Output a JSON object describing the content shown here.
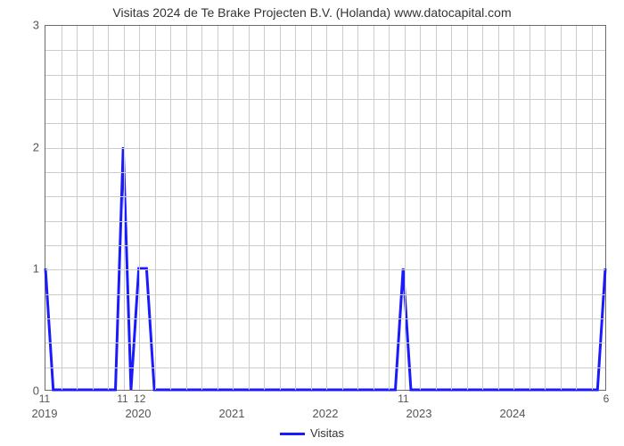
{
  "chart": {
    "type": "line",
    "title": "Visitas 2024 de Te Brake Projecten B.V. (Holanda) www.datocapital.com",
    "title_fontsize": 14,
    "background_color": "#ffffff",
    "grid_color": "#cccccc",
    "axis_color": "#6b6b6b",
    "series_color": "#1a1aff",
    "line_width": 3,
    "ylim": [
      0,
      3
    ],
    "ytick_step": 1,
    "yticks": [
      0,
      1,
      2,
      3
    ],
    "h_minor_count": 15,
    "xlim_months": [
      0,
      72
    ],
    "x_major_ticks": [
      {
        "month": 0,
        "label": "2019"
      },
      {
        "month": 12,
        "label": "2020"
      },
      {
        "month": 24,
        "label": "2021"
      },
      {
        "month": 36,
        "label": "2022"
      },
      {
        "month": 48,
        "label": "2023"
      },
      {
        "month": 60,
        "label": "2024"
      }
    ],
    "x_minor_ticks": [
      {
        "month": 0,
        "label": "11"
      },
      {
        "month": 10,
        "label": "11"
      },
      {
        "month": 12.2,
        "label": "12"
      },
      {
        "month": 46,
        "label": "11"
      },
      {
        "month": 72,
        "label": "6"
      }
    ],
    "v_major_gridlines_months": [
      12,
      24,
      36,
      48,
      60
    ],
    "v_minor_gridlines_months": [
      2,
      4,
      6,
      8,
      10,
      14,
      16,
      18,
      20,
      22,
      26,
      28,
      30,
      32,
      34,
      38,
      40,
      42,
      44,
      46,
      50,
      52,
      54,
      56,
      58,
      62,
      64,
      66,
      68,
      70
    ],
    "series": {
      "name": "Visitas",
      "points": [
        {
          "m": 0,
          "y": 1
        },
        {
          "m": 1,
          "y": 0
        },
        {
          "m": 9,
          "y": 0
        },
        {
          "m": 10,
          "y": 2
        },
        {
          "m": 11,
          "y": 0
        },
        {
          "m": 12,
          "y": 1
        },
        {
          "m": 13,
          "y": 1
        },
        {
          "m": 14,
          "y": 0
        },
        {
          "m": 45,
          "y": 0
        },
        {
          "m": 46,
          "y": 1
        },
        {
          "m": 47,
          "y": 0
        },
        {
          "m": 71,
          "y": 0
        },
        {
          "m": 72,
          "y": 1
        }
      ]
    },
    "legend_label": "Visitas"
  }
}
